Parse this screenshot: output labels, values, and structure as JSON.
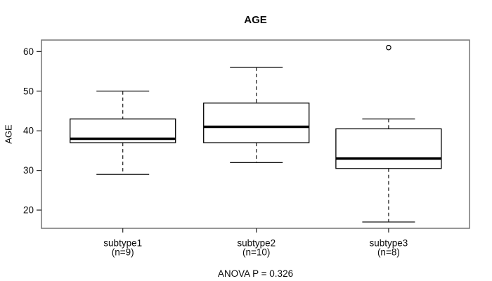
{
  "figure": {
    "title": "AGE",
    "y_axis_label": "AGE",
    "caption": "ANOVA P = 0.326"
  },
  "chart_data": {
    "type": "boxplot",
    "title": "AGE",
    "ylabel": "AGE",
    "caption": "ANOVA P = 0.326",
    "yticks": [
      20,
      30,
      40,
      50,
      60
    ],
    "ylim": [
      15.4,
      62.9
    ],
    "grid": false,
    "legend": "none",
    "groups": [
      {
        "label": "subtype1",
        "sublabel": "(n=9)",
        "whisker_low": 29,
        "q1": 37,
        "median": 38,
        "q3": 43,
        "whisker_high": 50,
        "outliers": []
      },
      {
        "label": "subtype2",
        "sublabel": "(n=10)",
        "whisker_low": 32,
        "q1": 37,
        "median": 41,
        "q3": 47,
        "whisker_high": 56,
        "outliers": []
      },
      {
        "label": "subtype3",
        "sublabel": "(n=8)",
        "whisker_low": 17,
        "q1": 30.5,
        "median": 33,
        "q3": 40.5,
        "whisker_high": 43,
        "outliers": [
          61
        ]
      }
    ]
  },
  "colors": {
    "background": "#ffffff",
    "plot_border": "#757575",
    "box_stroke": "#000000",
    "box_fill": "#ffffff",
    "median": "#000000",
    "whisker": "#1a1a1a",
    "tick": "#222222",
    "text": "#0a0a0a"
  }
}
